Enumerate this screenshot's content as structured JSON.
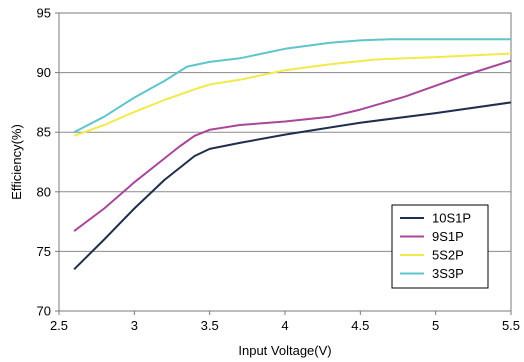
{
  "chart_data": {
    "type": "line",
    "xlabel": "Input Voltage(V)",
    "ylabel": "Efficiency(%)",
    "xlim": [
      2.5,
      5.5
    ],
    "ylim": [
      70,
      95
    ],
    "xticks": [
      "2.5",
      "3",
      "3.5",
      "4",
      "4.5",
      "5",
      "5.5"
    ],
    "yticks": [
      "70",
      "75",
      "80",
      "85",
      "90",
      "95"
    ],
    "grid": "horizontal",
    "legend_position": "bottom-right",
    "series": [
      {
        "name": "10S1P",
        "color": "#1f2d4f",
        "points": [
          [
            2.6,
            73.5
          ],
          [
            2.8,
            76.0
          ],
          [
            3.0,
            78.6
          ],
          [
            3.2,
            81.0
          ],
          [
            3.3,
            82.0
          ],
          [
            3.4,
            83.0
          ],
          [
            3.5,
            83.6
          ],
          [
            3.7,
            84.1
          ],
          [
            4.0,
            84.8
          ],
          [
            4.5,
            85.8
          ],
          [
            5.0,
            86.6
          ],
          [
            5.5,
            87.5
          ]
        ]
      },
      {
        "name": "9S1P",
        "color": "#a8479a",
        "points": [
          [
            2.6,
            76.7
          ],
          [
            2.8,
            78.6
          ],
          [
            3.0,
            80.8
          ],
          [
            3.2,
            82.8
          ],
          [
            3.3,
            83.8
          ],
          [
            3.4,
            84.7
          ],
          [
            3.5,
            85.2
          ],
          [
            3.7,
            85.6
          ],
          [
            4.0,
            85.9
          ],
          [
            4.3,
            86.3
          ],
          [
            4.5,
            86.9
          ],
          [
            4.8,
            88.0
          ],
          [
            5.0,
            88.9
          ],
          [
            5.2,
            89.8
          ],
          [
            5.5,
            91.0
          ]
        ]
      },
      {
        "name": "5S2P",
        "color": "#f2ea4a",
        "points": [
          [
            2.6,
            84.7
          ],
          [
            2.8,
            85.6
          ],
          [
            3.0,
            86.7
          ],
          [
            3.2,
            87.7
          ],
          [
            3.4,
            88.6
          ],
          [
            3.5,
            89.0
          ],
          [
            3.7,
            89.4
          ],
          [
            4.0,
            90.2
          ],
          [
            4.3,
            90.7
          ],
          [
            4.6,
            91.1
          ],
          [
            5.0,
            91.3
          ],
          [
            5.5,
            91.6
          ]
        ]
      },
      {
        "name": "3S3P",
        "color": "#5fc4cc",
        "points": [
          [
            2.6,
            85.0
          ],
          [
            2.8,
            86.3
          ],
          [
            3.0,
            87.9
          ],
          [
            3.2,
            89.3
          ],
          [
            3.35,
            90.5
          ],
          [
            3.5,
            90.9
          ],
          [
            3.7,
            91.2
          ],
          [
            4.0,
            92.0
          ],
          [
            4.3,
            92.5
          ],
          [
            4.5,
            92.7
          ],
          [
            4.7,
            92.8
          ],
          [
            5.0,
            92.8
          ],
          [
            5.5,
            92.8
          ]
        ]
      }
    ]
  }
}
